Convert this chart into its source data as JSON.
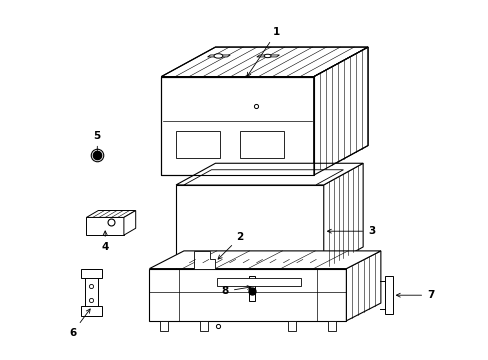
{
  "background_color": "#ffffff",
  "line_color": "#000000",
  "fig_width": 4.89,
  "fig_height": 3.6,
  "dpi": 100,
  "label_fontsize": 7.5,
  "lw": 0.8,
  "hatch_lw": 0.4,
  "arrow_lw": 0.6,
  "arrow_mutation_scale": 7
}
